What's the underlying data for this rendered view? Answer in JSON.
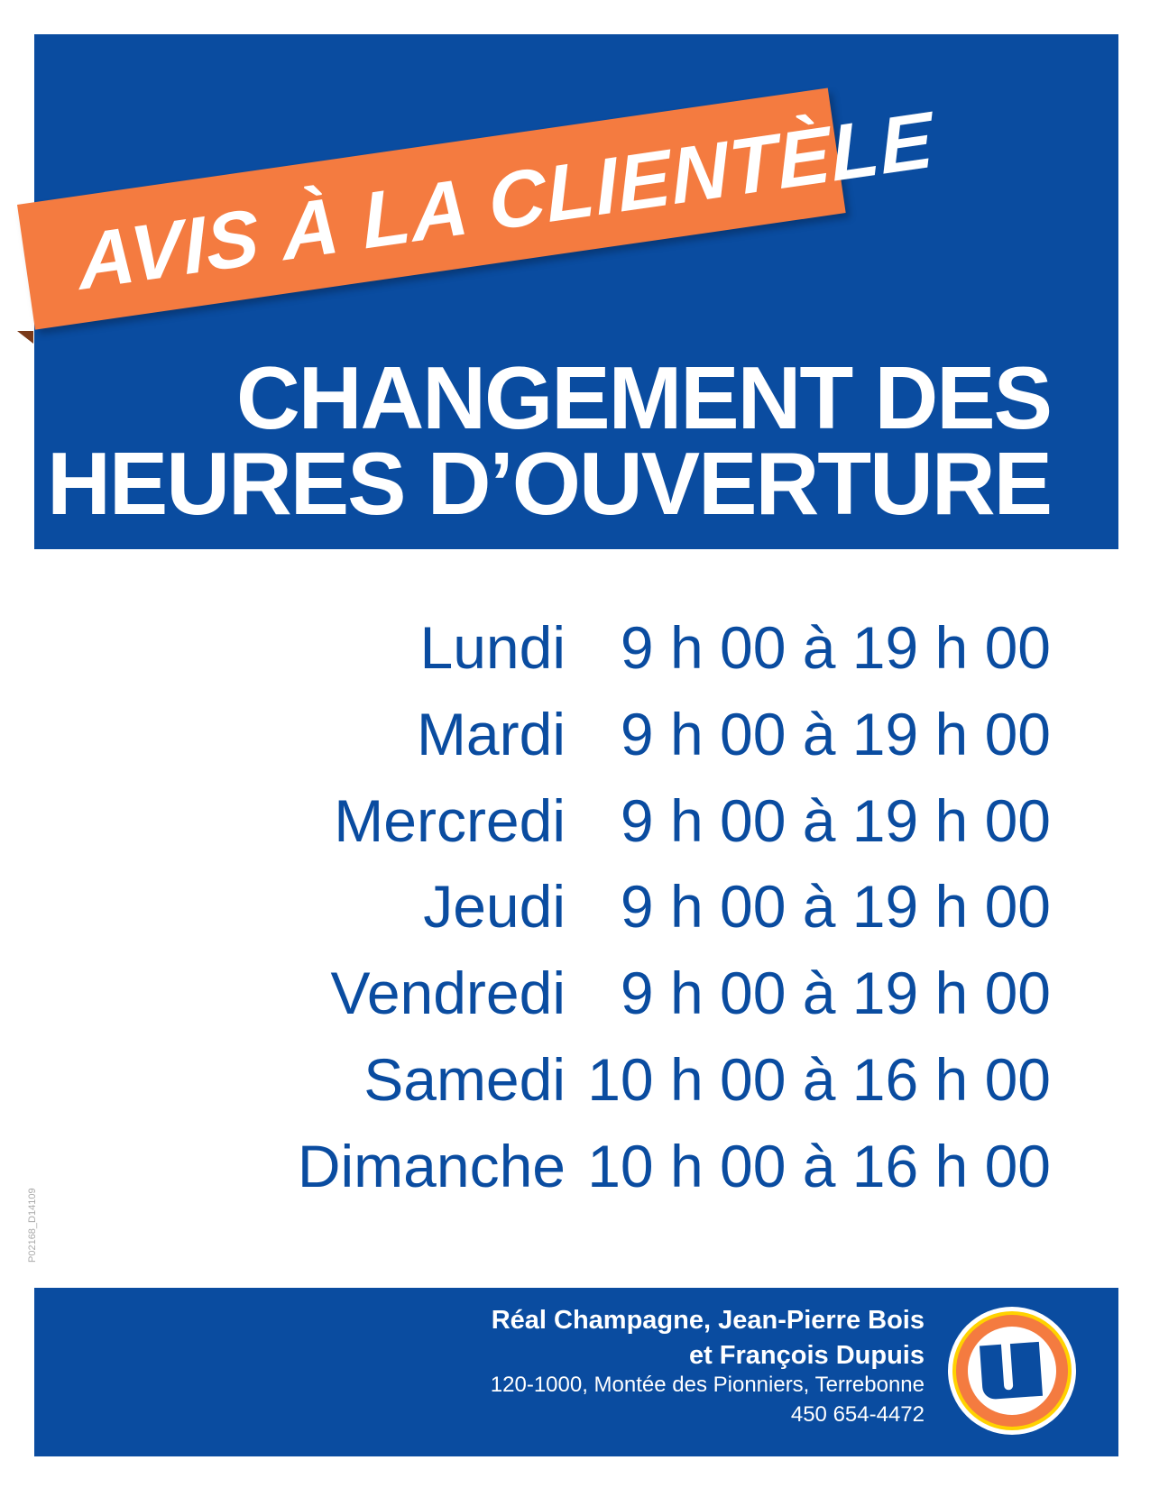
{
  "header": {
    "banner": "AVIS À LA CLIENTÈLE",
    "title_line1": "CHANGEMENT DES",
    "title_line2": "HEURES D’OUVERTURE"
  },
  "schedule": [
    {
      "day": "Lundi",
      "hours": "9 h 00 à 19 h 00"
    },
    {
      "day": "Mardi",
      "hours": "9 h 00 à 19 h 00"
    },
    {
      "day": "Mercredi",
      "hours": "9 h 00 à 19 h 00"
    },
    {
      "day": "Jeudi",
      "hours": "9 h 00 à 19 h 00"
    },
    {
      "day": "Vendredi",
      "hours": "9 h 00 à 19 h 00"
    },
    {
      "day": "Samedi",
      "hours": "10 h 00 à 16 h 00"
    },
    {
      "day": "Dimanche",
      "hours": "10 h 00 à 16 h 00"
    }
  ],
  "code": "P02168_D14109",
  "footer": {
    "owners_line1": "Réal Champagne, Jean-Pierre Bois",
    "owners_line2": "et François Dupuis",
    "address": "120-1000, Montée des Pionniers, Terrebonne",
    "phone": "450 654-4472",
    "logo": "uniprix-u-logo"
  },
  "colors": {
    "blue": "#0a4ca0",
    "orange": "#f47b40",
    "yellow": "#ffd200"
  }
}
